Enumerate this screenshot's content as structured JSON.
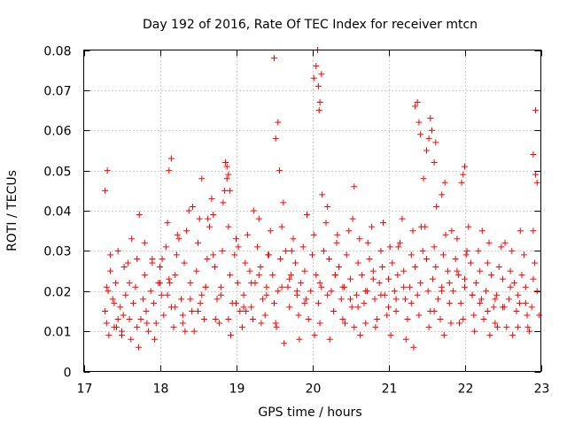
{
  "chart_data": {
    "type": "scatter",
    "title": "Day 192 of 2016, Rate Of TEC Index for receiver mtcn",
    "xlabel": "GPS time / hours",
    "ylabel": "ROTI / TECUs",
    "xlim": [
      17,
      23
    ],
    "ylim": [
      0,
      0.08
    ],
    "grid": true,
    "marker": "+",
    "color": "#ff0000",
    "x_ticks": [
      17,
      18,
      19,
      20,
      21,
      22,
      23
    ],
    "x_tick_labels": [
      "17",
      "18",
      "19",
      "20",
      "21",
      "22",
      "23"
    ],
    "y_ticks": [
      0,
      0.01,
      0.02,
      0.03,
      0.04,
      0.05,
      0.06,
      0.07,
      0.08
    ],
    "y_tick_labels": [
      "0",
      "0.01",
      "0.02",
      "0.03",
      "0.04",
      "0.05",
      "0.06",
      "0.07",
      "0.08"
    ],
    "series": [
      {
        "name": "ROTI",
        "x": [
          17.28,
          17.3,
          17.32,
          17.35,
          17.38,
          17.4,
          17.42,
          17.45,
          17.48,
          17.5,
          17.52,
          17.55,
          17.58,
          17.6,
          17.62,
          17.65,
          17.68,
          17.7,
          17.72,
          17.75,
          17.78,
          17.8,
          17.82,
          17.85,
          17.88,
          17.9,
          17.92,
          17.95,
          17.98,
          18.0,
          18.02,
          18.05,
          18.08,
          18.1,
          18.12,
          18.15,
          18.18,
          18.2,
          18.22,
          18.25,
          18.28,
          18.3,
          18.32,
          18.35,
          18.38,
          18.4,
          18.42,
          18.45,
          18.48,
          18.5,
          18.52,
          18.55,
          18.58,
          18.6,
          18.62,
          18.65,
          18.68,
          18.7,
          18.72,
          18.75,
          18.78,
          18.8,
          18.82,
          18.85,
          18.88,
          18.9,
          18.92,
          18.95,
          18.98,
          19.0,
          19.02,
          19.05,
          19.08,
          19.1,
          19.12,
          19.15,
          19.18,
          19.2,
          19.22,
          19.25,
          19.28,
          19.3,
          19.32,
          19.35,
          19.38,
          19.4,
          19.42,
          19.45,
          19.48,
          19.5,
          19.52,
          19.55,
          19.58,
          19.6,
          19.62,
          19.65,
          19.68,
          19.7,
          19.72,
          19.75,
          19.78,
          19.8,
          19.82,
          19.85,
          19.88,
          19.9,
          19.92,
          19.95,
          19.98,
          20.0,
          20.02,
          20.05,
          20.08,
          20.1,
          20.12,
          20.15,
          20.18,
          20.2,
          20.22,
          20.25,
          20.28,
          20.3,
          20.32,
          20.35,
          20.38,
          20.4,
          20.42,
          20.45,
          20.48,
          20.5,
          20.52,
          20.55,
          20.58,
          20.6,
          20.62,
          20.65,
          20.68,
          20.7,
          20.72,
          20.75,
          20.78,
          20.8,
          20.82,
          20.85,
          20.88,
          20.9,
          20.92,
          20.95,
          20.98,
          21.0,
          21.02,
          21.05,
          21.08,
          21.1,
          21.12,
          21.15,
          21.18,
          21.2,
          21.22,
          21.25,
          21.28,
          21.3,
          21.32,
          21.35,
          21.38,
          21.4,
          21.42,
          21.45,
          21.48,
          21.5,
          21.52,
          21.55,
          21.58,
          21.6,
          21.62,
          21.65,
          21.68,
          21.7,
          21.72,
          21.75,
          21.78,
          21.8,
          21.82,
          21.85,
          21.88,
          21.9,
          21.92,
          21.95,
          21.98,
          22.0,
          22.02,
          22.05,
          22.08,
          22.1,
          22.12,
          22.15,
          22.18,
          22.2,
          22.22,
          22.25,
          22.28,
          22.3,
          22.32,
          22.35,
          22.38,
          22.4,
          22.42,
          22.45,
          22.48,
          22.5,
          22.52,
          22.55,
          22.58,
          22.6,
          22.62,
          22.65,
          22.68,
          22.7,
          22.72,
          22.75,
          22.78,
          22.8,
          22.82,
          22.85,
          22.88,
          22.9,
          22.92,
          22.95,
          22.98,
          17.3,
          17.35,
          17.4,
          17.45,
          17.5,
          17.6,
          17.7,
          17.8,
          17.9,
          18.0,
          18.1,
          18.2,
          18.3,
          18.4,
          18.5,
          18.6,
          18.7,
          18.8,
          18.9,
          19.0,
          19.1,
          19.2,
          19.3,
          19.4,
          19.6,
          19.7,
          19.8,
          19.9,
          20.1,
          20.2,
          20.3,
          20.4,
          20.5,
          20.6,
          20.7,
          20.8,
          20.9,
          21.0,
          21.1,
          21.2,
          21.3,
          21.6,
          21.7,
          21.8,
          21.9,
          22.0,
          22.1,
          22.2,
          22.3,
          22.4,
          22.5,
          22.6,
          22.7,
          22.8,
          22.9,
          17.33,
          17.43,
          17.53,
          17.63,
          17.73,
          17.83,
          17.93,
          18.03,
          18.13,
          18.23,
          18.33,
          18.43,
          18.53,
          18.63,
          18.73,
          18.83,
          18.93,
          19.03,
          19.13,
          19.23,
          19.33,
          19.43,
          19.53,
          19.63,
          19.73,
          19.83,
          19.93,
          20.03,
          20.13,
          20.23,
          20.33,
          20.43,
          20.53,
          20.63,
          20.73,
          20.83,
          20.93,
          21.03,
          21.13,
          21.23,
          21.33,
          21.43,
          21.53,
          21.63,
          21.73,
          21.83,
          21.93,
          22.03,
          22.13,
          22.23,
          22.33,
          22.43,
          22.53,
          22.63,
          22.73,
          22.83,
          22.93,
          19.52,
          19.55,
          19.57,
          19.5,
          20.02,
          20.05,
          20.07,
          20.08,
          20.1,
          20.12,
          20.09,
          21.38,
          21.4,
          21.42,
          21.35,
          21.55,
          21.57,
          21.53,
          21.6,
          21.98,
          21.96,
          22.0,
          22.93,
          22.95,
          22.9,
          18.12,
          18.15,
          18.88,
          18.9,
          18.92,
          18.86,
          21.5,
          21.46,
          21.62,
          21.7,
          21.74,
          17.28,
          17.31,
          18.55,
          20.55
        ],
        "y": [
          0.015,
          0.012,
          0.02,
          0.025,
          0.018,
          0.011,
          0.022,
          0.03,
          0.016,
          0.009,
          0.014,
          0.019,
          0.027,
          0.013,
          0.008,
          0.017,
          0.021,
          0.011,
          0.006,
          0.013,
          0.018,
          0.024,
          0.015,
          0.01,
          0.02,
          0.028,
          0.017,
          0.012,
          0.022,
          0.026,
          0.019,
          0.014,
          0.031,
          0.037,
          0.023,
          0.016,
          0.011,
          0.024,
          0.029,
          0.033,
          0.018,
          0.012,
          0.027,
          0.035,
          0.04,
          0.022,
          0.015,
          0.01,
          0.025,
          0.032,
          0.038,
          0.019,
          0.013,
          0.021,
          0.028,
          0.036,
          0.043,
          0.039,
          0.026,
          0.018,
          0.012,
          0.021,
          0.03,
          0.045,
          0.048,
          0.036,
          0.024,
          0.017,
          0.029,
          0.033,
          0.022,
          0.015,
          0.011,
          0.019,
          0.027,
          0.034,
          0.025,
          0.016,
          0.013,
          0.022,
          0.031,
          0.038,
          0.026,
          0.018,
          0.014,
          0.021,
          0.029,
          0.035,
          0.024,
          0.017,
          0.012,
          0.02,
          0.028,
          0.036,
          0.042,
          0.03,
          0.021,
          0.016,
          0.024,
          0.033,
          0.027,
          0.019,
          0.014,
          0.022,
          0.031,
          0.025,
          0.018,
          0.013,
          0.02,
          0.029,
          0.034,
          0.024,
          0.017,
          0.012,
          0.021,
          0.03,
          0.037,
          0.041,
          0.028,
          0.02,
          0.015,
          0.024,
          0.032,
          0.026,
          0.018,
          0.013,
          0.021,
          0.029,
          0.035,
          0.023,
          0.016,
          0.011,
          0.019,
          0.027,
          0.033,
          0.024,
          0.017,
          0.012,
          0.02,
          0.028,
          0.036,
          0.025,
          0.018,
          0.013,
          0.022,
          0.03,
          0.026,
          0.019,
          0.014,
          0.023,
          0.031,
          0.027,
          0.02,
          0.015,
          0.024,
          0.032,
          0.038,
          0.025,
          0.018,
          0.013,
          0.021,
          0.029,
          0.035,
          0.026,
          0.019,
          0.014,
          0.022,
          0.03,
          0.036,
          0.028,
          0.02,
          0.015,
          0.023,
          0.031,
          0.026,
          0.018,
          0.013,
          0.021,
          0.029,
          0.034,
          0.025,
          0.017,
          0.012,
          0.02,
          0.028,
          0.033,
          0.024,
          0.017,
          0.013,
          0.021,
          0.029,
          0.036,
          0.027,
          0.019,
          0.014,
          0.022,
          0.03,
          0.025,
          0.018,
          0.013,
          0.02,
          0.027,
          0.032,
          0.024,
          0.016,
          0.012,
          0.019,
          0.026,
          0.031,
          0.023,
          0.016,
          0.011,
          0.018,
          0.025,
          0.03,
          0.022,
          0.015,
          0.011,
          0.017,
          0.024,
          0.029,
          0.021,
          0.014,
          0.01,
          0.016,
          0.023,
          0.027,
          0.02,
          0.014,
          0.021,
          0.029,
          0.017,
          0.013,
          0.01,
          0.022,
          0.028,
          0.032,
          0.027,
          0.022,
          0.019,
          0.016,
          0.014,
          0.018,
          0.015,
          0.021,
          0.029,
          0.019,
          0.013,
          0.017,
          0.016,
          0.022,
          0.024,
          0.019,
          0.021,
          0.023,
          0.02,
          0.017,
          0.022,
          0.019,
          0.024,
          0.021,
          0.018,
          0.016,
          0.02,
          0.023,
          0.019,
          0.016,
          0.018,
          0.021,
          0.017,
          0.015,
          0.02,
          0.022,
          0.025,
          0.023,
          0.019,
          0.017,
          0.015,
          0.018,
          0.016,
          0.021,
          0.019,
          0.017,
          0.035,
          0.009,
          0.011,
          0.026,
          0.033,
          0.039,
          0.012,
          0.008,
          0.028,
          0.022,
          0.034,
          0.01,
          0.041,
          0.017,
          0.038,
          0.013,
          0.042,
          0.009,
          0.031,
          0.015,
          0.04,
          0.012,
          0.029,
          0.011,
          0.007,
          0.03,
          0.008,
          0.039,
          0.009,
          0.044,
          0.008,
          0.034,
          0.012,
          0.038,
          0.009,
          0.032,
          0.011,
          0.037,
          0.009,
          0.031,
          0.008,
          0.006,
          0.036,
          0.011,
          0.041,
          0.009,
          0.035,
          0.012,
          0.03,
          0.01,
          0.035,
          0.009,
          0.011,
          0.032,
          0.009,
          0.035,
          0.011,
          0.065,
          0.058,
          0.062,
          0.05,
          0.078,
          0.073,
          0.076,
          0.08,
          0.071,
          0.067,
          0.074,
          0.065,
          0.067,
          0.062,
          0.059,
          0.066,
          0.063,
          0.06,
          0.058,
          0.052,
          0.049,
          0.047,
          0.051,
          0.049,
          0.047,
          0.054,
          0.05,
          0.053,
          0.051,
          0.049,
          0.045,
          0.052,
          0.055,
          0.048,
          0.057,
          0.044,
          0.047,
          0.045,
          0.05,
          0.048,
          0.046
        ]
      }
    ]
  }
}
